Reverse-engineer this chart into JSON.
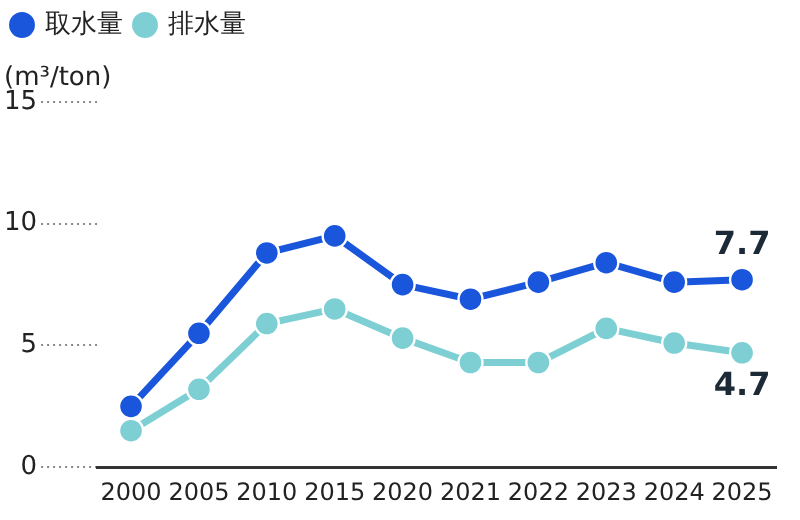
{
  "chart_data": {
    "type": "line",
    "ylabel": "(m³/ton)",
    "categories": [
      "2000",
      "2005",
      "2010",
      "2015",
      "2020",
      "2021",
      "2022",
      "2023",
      "2024",
      "2025"
    ],
    "series": [
      {
        "name": "取水量",
        "color": "#1a56db",
        "values": [
          2.5,
          5.5,
          8.8,
          9.5,
          7.5,
          6.9,
          7.6,
          8.4,
          7.6,
          7.7
        ],
        "value_labels": [
          null,
          null,
          null,
          null,
          null,
          null,
          null,
          null,
          null,
          "7.7"
        ]
      },
      {
        "name": "排水量",
        "color": "#7dcfd3",
        "values": [
          1.5,
          3.2,
          5.9,
          6.5,
          5.3,
          4.3,
          4.3,
          5.7,
          5.1,
          4.7
        ],
        "value_labels": [
          null,
          null,
          null,
          null,
          null,
          null,
          null,
          null,
          null,
          "4.7"
        ]
      }
    ],
    "ylim": [
      0,
      15
    ],
    "yticks": [
      0,
      5,
      10,
      15
    ],
    "grid": false,
    "legend": "top left",
    "marker": "circle",
    "line_style": "solid"
  }
}
